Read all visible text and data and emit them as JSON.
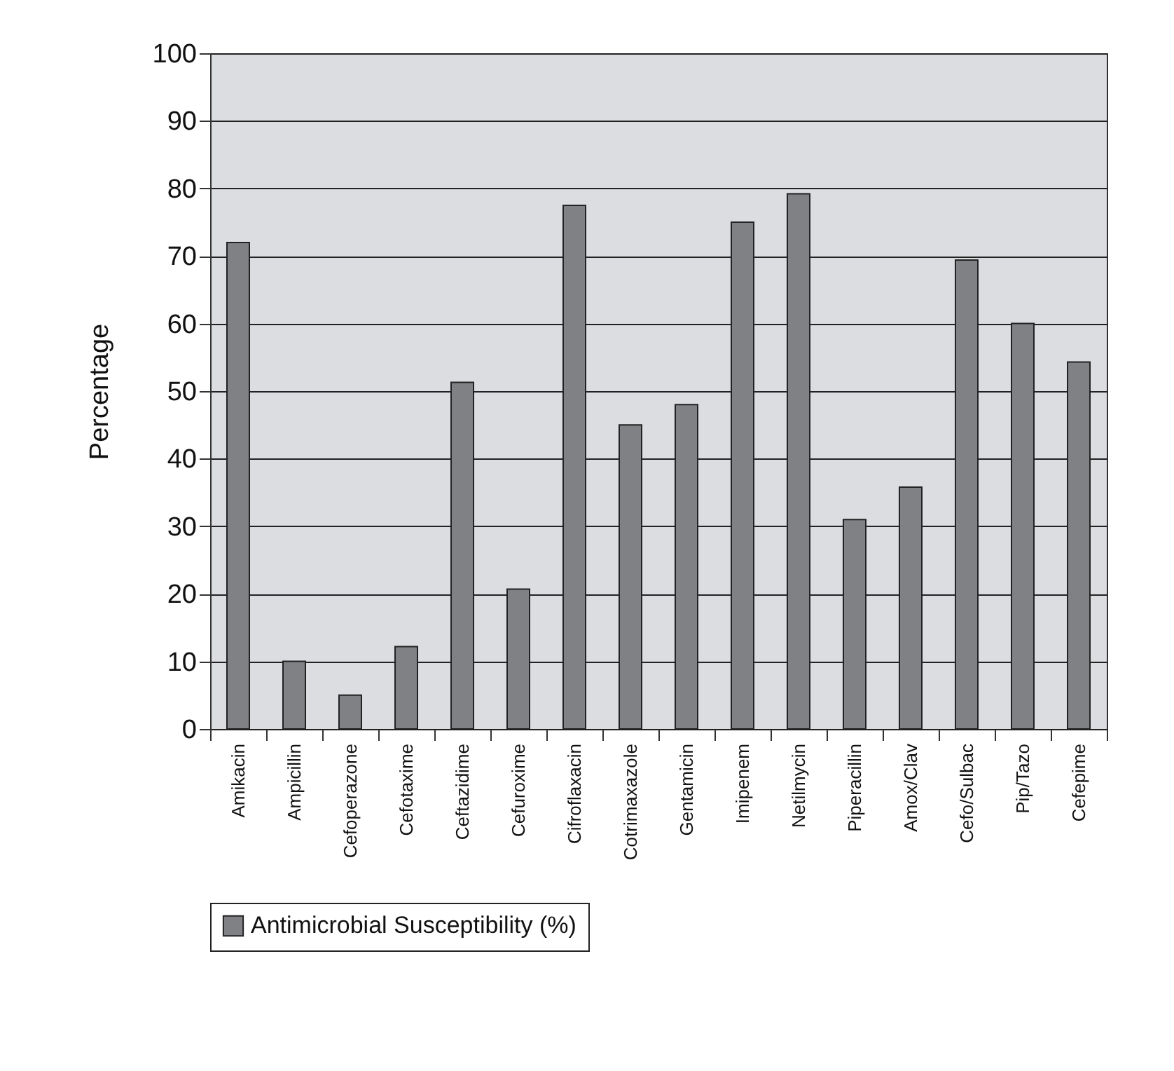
{
  "chart_data": {
    "type": "bar",
    "ylabel": "Percentage",
    "categories": [
      "Amikacin",
      "Ampicillin",
      "Cefoperazone",
      "Cefotaxime",
      "Ceftazidime",
      "Cefuroxime",
      "Cifroflaxacin",
      "Cotrimaxazole",
      "Gentamicin",
      "Imipenem",
      "Netilmycin",
      "Piperacillin",
      "Amox/Clav",
      "Cefo/Sulbac",
      "Pip/Tazo",
      "Cefepime"
    ],
    "series": [
      {
        "name": "Antimicrobial Susceptibility (%)",
        "color": "#808184",
        "values": [
          72,
          10,
          5,
          12.2,
          51.3,
          20.7,
          77.5,
          45,
          48,
          75,
          79.2,
          31,
          35.8,
          69.4,
          60,
          54.3
        ]
      }
    ],
    "ylim": [
      0,
      100
    ],
    "yticks": [
      0,
      10,
      20,
      30,
      40,
      50,
      60,
      70,
      80,
      90,
      100
    ],
    "grid": "y",
    "legend": "bottom"
  }
}
